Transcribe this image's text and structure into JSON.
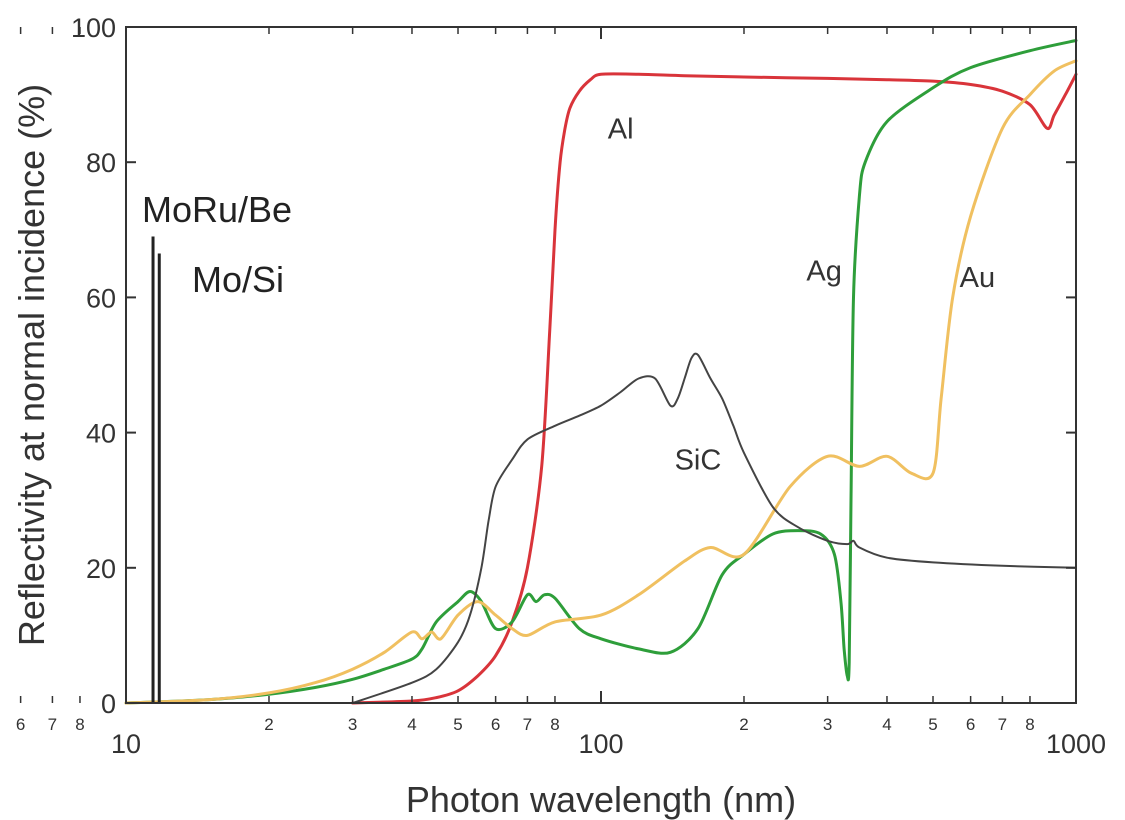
{
  "chart_data": {
    "type": "line",
    "xscale": "log",
    "xlim": [
      10,
      1000
    ],
    "ylim": [
      0,
      100
    ],
    "xlabel": "Photon wavelength (nm)",
    "ylabel": "Reflectivity at normal incidence (%)",
    "xticks_major": [
      10,
      100,
      1000
    ],
    "xtick_major_labels": [
      "10",
      "100",
      "1000"
    ],
    "xticks_minor": [
      2,
      3,
      4,
      5,
      6,
      7,
      8,
      20,
      30,
      40,
      50,
      60,
      70,
      80,
      200,
      300,
      400,
      500,
      600,
      700,
      800
    ],
    "xtick_minor_labels": [
      "2",
      "3",
      "4",
      "5",
      "6",
      "7",
      "8",
      "2",
      "3",
      "4",
      "5",
      "6",
      "7",
      "8",
      "2",
      "3",
      "4",
      "5",
      "6",
      "7",
      "8"
    ],
    "yticks": [
      0,
      20,
      40,
      60,
      80,
      100
    ],
    "ytick_labels": [
      "0",
      "20",
      "40",
      "60",
      "80",
      "100"
    ],
    "grid": false,
    "series": [
      {
        "name": "Al",
        "color": "#d9343a",
        "x": [
          30,
          40,
          45,
          50,
          55,
          60,
          65,
          70,
          75,
          78,
          80,
          82,
          84,
          86,
          90,
          95,
          100,
          120,
          150,
          200,
          300,
          400,
          500,
          600,
          700,
          800,
          870,
          900,
          950,
          1000
        ],
        "y": [
          0,
          0.3,
          0.8,
          1.8,
          4,
          7,
          12,
          20,
          35,
          55,
          70,
          80,
          85,
          88,
          90.5,
          92.2,
          93,
          93,
          92.8,
          92.6,
          92.4,
          92.2,
          92,
          91.5,
          90.5,
          88.5,
          85,
          87,
          90,
          93
        ]
      },
      {
        "name": "Ag",
        "color": "#2e9e3a",
        "x": [
          10,
          15,
          20,
          25,
          30,
          35,
          40,
          42,
          45,
          50,
          53,
          56,
          60,
          65,
          70,
          73,
          76,
          80,
          90,
          100,
          120,
          140,
          160,
          180,
          200,
          230,
          260,
          290,
          310,
          320,
          325,
          330,
          333,
          336,
          340,
          350,
          360,
          400,
          500,
          600,
          800,
          1000
        ],
        "y": [
          0,
          0.5,
          1.3,
          2.3,
          3.5,
          5,
          6.5,
          8,
          12,
          15,
          16.5,
          15,
          11,
          12,
          16,
          15,
          16,
          15.5,
          11,
          9.5,
          8,
          7.5,
          11,
          19,
          22,
          25,
          25.5,
          25,
          22,
          15,
          8,
          4,
          6,
          30,
          60,
          75,
          80,
          86,
          91,
          94,
          96.5,
          98
        ]
      },
      {
        "name": "Au",
        "color": "#f0c060",
        "x": [
          10,
          15,
          20,
          25,
          30,
          35,
          40,
          42,
          44,
          46,
          50,
          55,
          60,
          65,
          70,
          80,
          100,
          120,
          150,
          170,
          200,
          250,
          300,
          350,
          400,
          450,
          500,
          520,
          550,
          600,
          700,
          800,
          900,
          1000
        ],
        "y": [
          0,
          0.5,
          1.5,
          3,
          5,
          7.5,
          10.5,
          9.5,
          10.5,
          9.5,
          13,
          15,
          13,
          11,
          10,
          12,
          13,
          16,
          21,
          23,
          22,
          32,
          36.5,
          35,
          36.5,
          34,
          34,
          45,
          60,
          72,
          85,
          90,
          93.5,
          95
        ]
      },
      {
        "name": "SiC",
        "color": "#444444",
        "x": [
          30,
          40,
          45,
          50,
          53,
          56,
          58,
          60,
          65,
          70,
          80,
          90,
          100,
          110,
          120,
          130,
          140,
          145,
          150,
          155,
          160,
          170,
          180,
          190,
          200,
          230,
          260,
          300,
          330,
          340,
          350,
          400,
          500,
          700,
          1000
        ],
        "y": [
          0,
          3,
          5,
          9,
          13,
          20,
          27,
          32,
          36,
          39,
          41,
          42.5,
          44,
          46,
          48,
          48,
          44,
          45,
          48,
          51,
          51.5,
          48,
          45,
          41,
          37,
          29,
          26,
          24,
          23.5,
          24,
          23,
          21.5,
          20.8,
          20.3,
          20
        ]
      }
    ],
    "annotations": [
      {
        "text": "Al",
        "x": 110,
        "y": 85
      },
      {
        "text": "Ag",
        "x": 295,
        "y": 64
      },
      {
        "text": "Au",
        "x": 620,
        "y": 63
      },
      {
        "text": "SiC",
        "x": 160,
        "y": 36
      }
    ],
    "multilayers": [
      {
        "name": "MoRu/Be",
        "x": 11.4,
        "y": 69,
        "color": "#222222"
      },
      {
        "name": "Mo/Si",
        "x": 11.75,
        "y": 66.5,
        "color": "#222222"
      }
    ]
  }
}
